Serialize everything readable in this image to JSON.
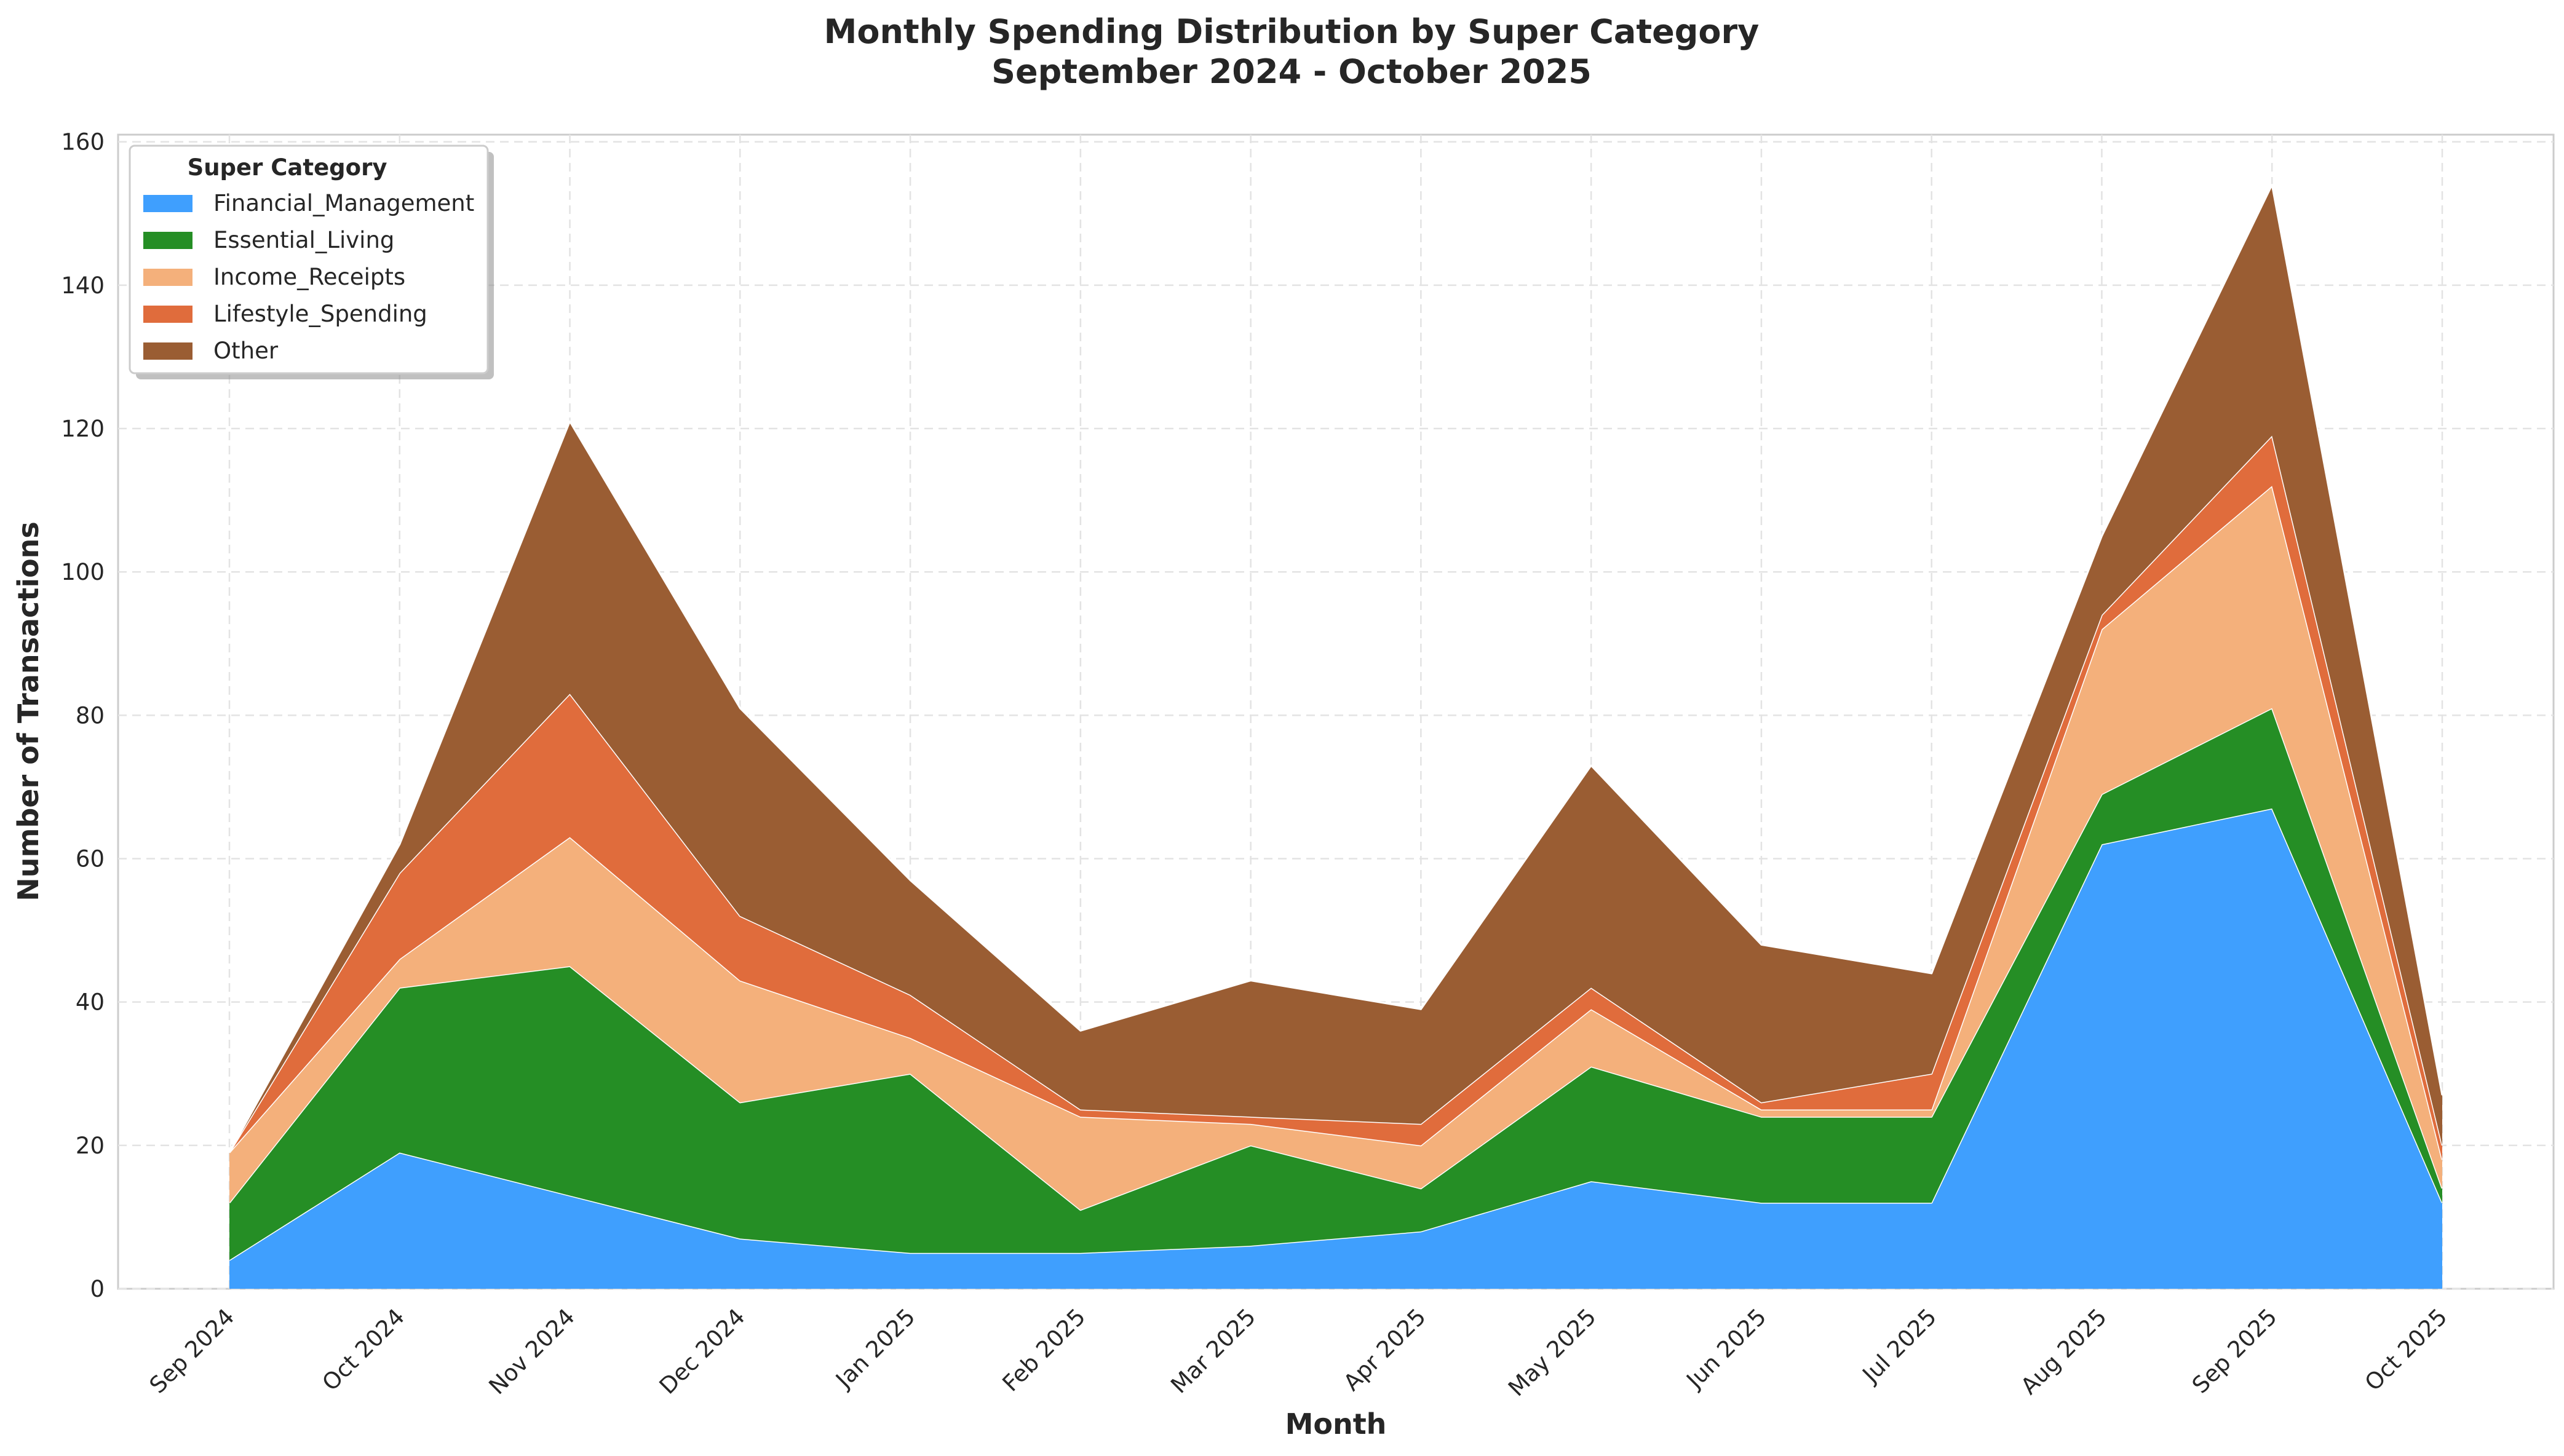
{
  "chart_data": {
    "type": "area",
    "stacked": true,
    "title": [
      "Monthly Spending Distribution by Super Category",
      "September 2024 - October 2025"
    ],
    "xlabel": "Month",
    "ylabel": "Number of Transactions",
    "ylim": [
      0,
      161
    ],
    "yticks": [
      0,
      20,
      40,
      60,
      80,
      100,
      120,
      140,
      160
    ],
    "grid": true,
    "legend_title": "Super Category",
    "legend_position": "top-left",
    "categories": [
      "Sep 2024",
      "Oct 2024",
      "Nov 2024",
      "Dec 2024",
      "Jan 2025",
      "Feb 2025",
      "Mar 2025",
      "Apr 2025",
      "May 2025",
      "Jun 2025",
      "Jul 2025",
      "Aug 2025",
      "Sep 2025",
      "Oct 2025"
    ],
    "series": [
      {
        "name": "Financial_Management",
        "color": "#3f9ffe",
        "values": [
          4,
          19,
          13,
          7,
          5,
          5,
          6,
          8,
          15,
          12,
          12,
          62,
          67,
          12
        ]
      },
      {
        "name": "Essential_Living",
        "color": "#258e25",
        "values": [
          8,
          23,
          32,
          19,
          25,
          6,
          14,
          6,
          16,
          12,
          12,
          7,
          14,
          2
        ]
      },
      {
        "name": "Income_Receipts",
        "color": "#f4b07b",
        "values": [
          7,
          4,
          18,
          17,
          5,
          13,
          3,
          6,
          8,
          1,
          1,
          23,
          31,
          4
        ]
      },
      {
        "name": "Lifestyle_Spending",
        "color": "#e06c3c",
        "values": [
          0,
          12,
          20,
          9,
          6,
          1,
          1,
          3,
          3,
          1,
          5,
          2,
          7,
          2
        ]
      },
      {
        "name": "Other",
        "color": "#9a5d33",
        "values": [
          0,
          4,
          38,
          29,
          16,
          11,
          19,
          16,
          31,
          22,
          14,
          11,
          35,
          7
        ]
      }
    ]
  }
}
